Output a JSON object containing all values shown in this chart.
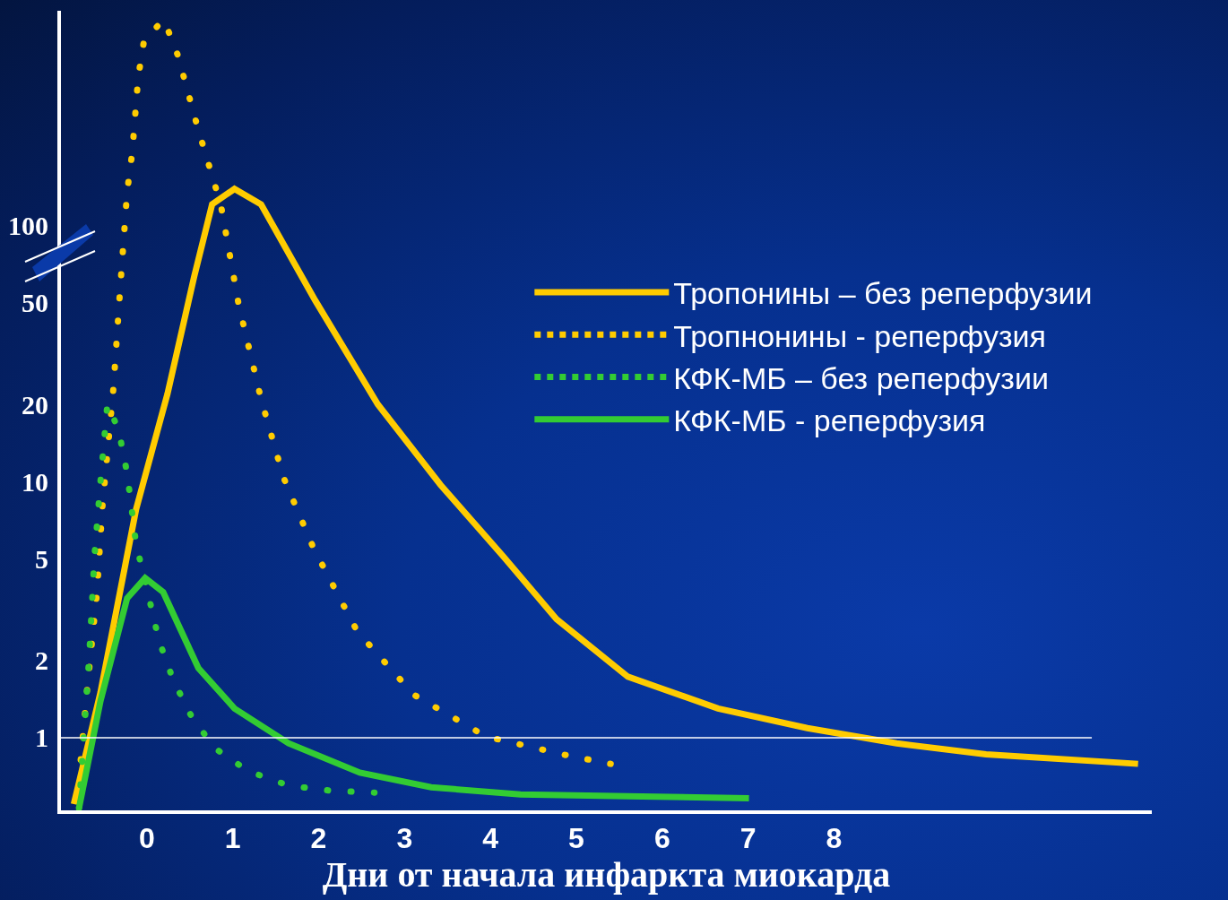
{
  "chart_data": {
    "type": "line",
    "xlabel": "Дни от начала инфаркта миокарда",
    "xlim": [
      -1,
      11.7
    ],
    "xticks": [
      0,
      1,
      2,
      3,
      4,
      5,
      6,
      7,
      8
    ],
    "ylim": [
      0.52,
      690
    ],
    "yticks": [
      1,
      2,
      5,
      10,
      20,
      50,
      100
    ],
    "grid": false,
    "legend": "right",
    "marker": "none",
    "log": "y",
    "ref_lines": [
      {
        "axis": "y",
        "value": 1,
        "label": null,
        "color": "#ffffff",
        "line_style": "solid"
      }
    ],
    "series": [
      {
        "name": "Тропонины – без реперфузии",
        "color": "#ffcc00",
        "line_style": "solid",
        "x": [
          -0.85,
          -0.54,
          -0.125,
          0.24,
          0.55,
          0.76,
          1.02,
          1.33,
          1.96,
          2.69,
          3.42,
          4.15,
          4.77,
          5.6,
          6.65,
          7.69,
          8.73,
          9.77,
          11.54
        ],
        "values": [
          0.55,
          1.5,
          7.8,
          22,
          63,
          121,
          139,
          121,
          51,
          20,
          9.7,
          5.1,
          2.9,
          1.73,
          1.3,
          1.09,
          0.95,
          0.86,
          0.79
        ]
      },
      {
        "name": "Тропнонины - реперфузия",
        "color": "#ffcc00",
        "line_style": "dotted",
        "x": [
          -0.77,
          -0.69,
          -0.58,
          -0.52,
          -0.39,
          -0.31,
          -0.23,
          -0.17,
          -0.1,
          -0.03,
          0.2,
          0.36,
          0.6,
          0.86,
          1.07,
          1.33,
          1.59,
          1.94,
          2.45,
          3.11,
          3.95,
          4.91,
          5.4
        ],
        "values": [
          0.82,
          1.61,
          3.7,
          7.8,
          23,
          57,
          135,
          193,
          381,
          535,
          636,
          463,
          236,
          121,
          49,
          21,
          10.4,
          5.5,
          2.6,
          1.47,
          1.01,
          0.85,
          0.79
        ]
      },
      {
        "name": "КФК-МБ – без реперфузии",
        "color": "#33cc33",
        "line_style": "dotted",
        "x": [
          -0.79,
          -0.73,
          -0.67,
          -0.61,
          -0.54,
          -0.46,
          -0.33,
          -0.23,
          -0.125,
          0.01,
          0.14,
          0.31,
          0.52,
          0.79,
          1.18,
          1.65,
          2.15,
          2.65
        ],
        "values": [
          0.53,
          1.05,
          2.1,
          5.1,
          10,
          20,
          16,
          10.8,
          5.7,
          3.7,
          2.4,
          1.67,
          1.21,
          0.91,
          0.74,
          0.65,
          0.62,
          0.61
        ]
      },
      {
        "name": "КФК-МБ - реперфузия",
        "color": "#33cc33",
        "line_style": "solid",
        "x": [
          -0.79,
          -0.54,
          -0.23,
          -0.02,
          0.19,
          0.6,
          1.02,
          1.65,
          2.48,
          3.31,
          4.35,
          5.6,
          7.01
        ],
        "values": [
          0.53,
          1.39,
          3.5,
          4.2,
          3.7,
          1.87,
          1.3,
          0.95,
          0.73,
          0.64,
          0.6,
          0.59,
          0.58
        ]
      }
    ]
  }
}
